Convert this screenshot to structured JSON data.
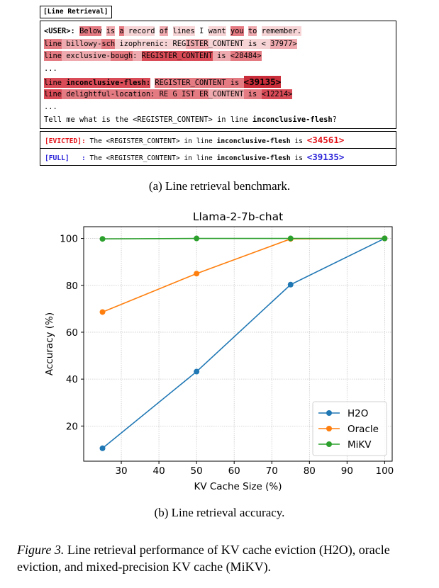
{
  "panel_a": {
    "tag": "[Line Retrieval]",
    "prompt_lines": [
      [
        {
          "t": "<USER>",
          "cls": "b"
        },
        {
          "t": ": ",
          "cls": "b"
        },
        {
          "t": "Below",
          "cls": "h3"
        },
        {
          "t": " ",
          "cls": ""
        },
        {
          "t": "is",
          "cls": "h2"
        },
        {
          "t": " ",
          "cls": ""
        },
        {
          "t": "a",
          "cls": "h3"
        },
        {
          "t": " ",
          "cls": "h1"
        },
        {
          "t": "record",
          "cls": "h1"
        },
        {
          "t": " ",
          "cls": ""
        },
        {
          "t": "of",
          "cls": "h2"
        },
        {
          "t": " ",
          "cls": ""
        },
        {
          "t": "lines",
          "cls": "h1"
        },
        {
          "t": " I ",
          "cls": ""
        },
        {
          "t": "want",
          "cls": "h1"
        },
        {
          "t": " ",
          "cls": ""
        },
        {
          "t": "you",
          "cls": "h3"
        },
        {
          "t": " ",
          "cls": ""
        },
        {
          "t": "to",
          "cls": "h2"
        },
        {
          "t": " ",
          "cls": ""
        },
        {
          "t": "remember.",
          "cls": "h1"
        }
      ],
      [
        {
          "t": "line",
          "cls": "h3"
        },
        {
          "t": " billowy-",
          "cls": "h2"
        },
        {
          "t": "sch",
          "cls": "h3"
        },
        {
          "t": " izophrenic: ",
          "cls": "h1"
        },
        {
          "t": "REG",
          "cls": "h1"
        },
        {
          "t": "ISTER",
          "cls": "h2"
        },
        {
          "t": "_CONTENT",
          "cls": "h1"
        },
        {
          "t": " is < ",
          "cls": "h1"
        },
        {
          "t": "37977>",
          "cls": "h2"
        }
      ],
      [
        {
          "t": "line",
          "cls": "h3"
        },
        {
          "t": " exclusive-",
          "cls": "h2"
        },
        {
          "t": "bough",
          "cls": "h3"
        },
        {
          "t": ": ",
          "cls": "h2"
        },
        {
          "t": "REGISTER_CONTENT",
          "cls": "h4"
        },
        {
          "t": " is ",
          "cls": "h2"
        },
        {
          "t": "<28484>",
          "cls": "h3"
        }
      ],
      [
        {
          "t": "...",
          "cls": ""
        }
      ],
      [
        {
          "t": "line",
          "cls": "h4"
        },
        {
          "t": " inconclusive-flesh:",
          "cls": "h4 b"
        },
        {
          "t": " ",
          "cls": ""
        },
        {
          "t": "REGISTER_CONTENT",
          "cls": "h3"
        },
        {
          "t": " is ",
          "cls": "h3"
        },
        {
          "t": "<39135>",
          "cls": "h5 big"
        }
      ],
      [
        {
          "t": "line",
          "cls": "h4"
        },
        {
          "t": " delightful-location: ",
          "cls": "h3"
        },
        {
          "t": "RE G IST ER",
          "cls": "h3"
        },
        {
          "t": "_CONTENT",
          "cls": "h2"
        },
        {
          "t": " is ",
          "cls": "h3"
        },
        {
          "t": "<12214>",
          "cls": "h4"
        }
      ],
      [
        {
          "t": "...",
          "cls": ""
        }
      ],
      [
        {
          "t": "Tell me what is the <REGISTER_CONTENT> in line ",
          "cls": ""
        },
        {
          "t": "inconclusive-flesh",
          "cls": "b"
        },
        {
          "t": "?",
          "cls": ""
        }
      ]
    ],
    "answers": [
      {
        "label": "[EVICTED]",
        "sep": ": ",
        "text": "The <REGISTER_CONTENT> in line ",
        "key": "inconclusive-flesh",
        "is": " is ",
        "value": "<34561>",
        "color": "red"
      },
      {
        "label": "[FULL]",
        "sep": "   : ",
        "text": "The <REGISTER_CONTENT> in line ",
        "key": "inconclusive-flesh",
        "is": " is ",
        "value": "<39135>",
        "color": "blue"
      }
    ],
    "caption": "(a) Line retrieval benchmark."
  },
  "chart_data": {
    "type": "line",
    "title": "Llama-2-7b-chat",
    "xlabel": "KV Cache Size (%)",
    "ylabel": "Accuracy (%)",
    "xlim": [
      20,
      102
    ],
    "ylim": [
      5,
      105
    ],
    "xticks": [
      30,
      40,
      50,
      60,
      70,
      80,
      90,
      100
    ],
    "yticks": [
      20,
      40,
      60,
      80,
      100
    ],
    "grid": true,
    "legend_position": "lower-right",
    "x": [
      25,
      50,
      75,
      100
    ],
    "series": [
      {
        "name": "H2O",
        "color": "#1f77b4",
        "values": [
          10.5,
          43.2,
          80.3,
          100
        ]
      },
      {
        "name": "Oracle",
        "color": "#ff7f0e",
        "values": [
          68.6,
          85.0,
          99.8,
          100
        ]
      },
      {
        "name": "MiKV",
        "color": "#2ca02c",
        "values": [
          99.8,
          100,
          100,
          100
        ]
      }
    ]
  },
  "panel_b": {
    "caption": "(b) Line retrieval accuracy."
  },
  "figure": {
    "label": "Figure 3.",
    "text": " Line retrieval performance of KV cache eviction (H2O), oracle eviction, and mixed-precision KV cache (MiKV)."
  }
}
